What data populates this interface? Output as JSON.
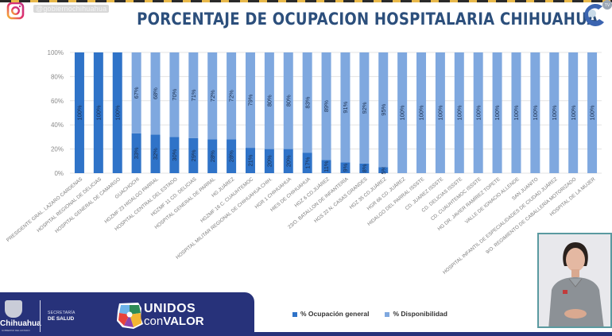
{
  "header": {
    "social_handle": "@gobiernochihuahua",
    "title": "PORCENTAJE DE OCUPACION HOSPITALARIA CHIHUAHUA",
    "tv_logo_text": "TV"
  },
  "footer": {
    "state_name": "Chihuahua",
    "state_sub": "GOBIERNO DEL ESTADO",
    "secretaria_line1": "SECRETARÍA",
    "secretaria_line2": "DE SALUD",
    "brand_line1": "UNIDOS",
    "brand_line2_light": "con",
    "brand_line2_bold": "VALOR"
  },
  "icons": {
    "social": "instagram-icon",
    "channel": "tv-channel-logo",
    "crest": "state-crest-icon",
    "map": "chihuahua-map-logo"
  },
  "colors": {
    "title": "#2c4f7c",
    "ocupacion": "#2f73c8",
    "disponibilidad": "#7fa8df",
    "footer": "#27327a"
  },
  "chart_data": {
    "type": "bar",
    "stacked": true,
    "orientation": "vertical",
    "title": "PORCENTAJE DE OCUPACION HOSPITALARIA CHIHUAHUA",
    "xlabel": "",
    "ylabel": "",
    "ylim": [
      0,
      100
    ],
    "yticks": [
      "0%",
      "20%",
      "40%",
      "60%",
      "80%",
      "100%"
    ],
    "grid": true,
    "legend_position": "bottom",
    "categories": [
      "PRESIDENTE GRAL. LAZARO CARDENAS",
      "HOSPITAL REGIONAL DE DELICIAS",
      "HOSPITAL GENERAL DE CAMARGO",
      "GUACHOCHI",
      "HGZMF 23 HIDALGO PARRAL",
      "HOSPITAL CENTRAL DEL ESTADO",
      "HGZMF 11 CD. DELICIAS",
      "HOSPITAL GENERAL DE PARRAL",
      "HG JUÁREZ",
      "HGZMF 16 C. CUAUHTEMOC",
      "HOSPITAL MILITAR REGIONAL DE CHIHUAHUA CHIH.",
      "HGR 1 CHIHUAHUA",
      "HIES DE CHIHUAHUA",
      "HGZ 6 CD.JUÁREZ",
      "23/O. BATALLON DE INFANTERÍA",
      "HGS 22 N. CASAS GRANDES",
      "HGZ 35 CD.JUÁREZ",
      "HGR 66 CD. JUÁREZ",
      "HIDALGO DEL PARRAL ISSSTE",
      "CD. JUAREZ ISSSTE",
      "CD. DELICIAS ISSSTE",
      "CD. CUAUHTEMOC ISSSTE",
      "HG DR. JAVIER RAMÍREZ TOPETE",
      "VALLE DE IGNACIO ALLENDE",
      "SAN JUANITO",
      "HOSPITAL INFANTIL DE ESPECIALIDADES DE CIUDAD JUÁREZ",
      "9/O. REGIMIENTO DE CABALLERÍA MOTORIZADO",
      "HOSPITAL DE LA MUJER"
    ],
    "series": [
      {
        "name": "% Ocupación general",
        "color": "#2f73c8",
        "values": [
          100,
          100,
          100,
          33,
          32,
          30,
          29,
          28,
          28,
          21,
          20,
          20,
          17,
          11,
          9,
          8,
          5,
          0,
          0,
          0,
          0,
          0,
          0,
          0,
          0,
          0,
          0,
          0
        ]
      },
      {
        "name": "% Disponibilidad",
        "color": "#7fa8df",
        "values": [
          0,
          0,
          0,
          67,
          68,
          70,
          71,
          72,
          72,
          79,
          80,
          80,
          83,
          89,
          91,
          92,
          95,
          100,
          100,
          100,
          100,
          100,
          100,
          100,
          100,
          100,
          100,
          100
        ]
      }
    ]
  }
}
